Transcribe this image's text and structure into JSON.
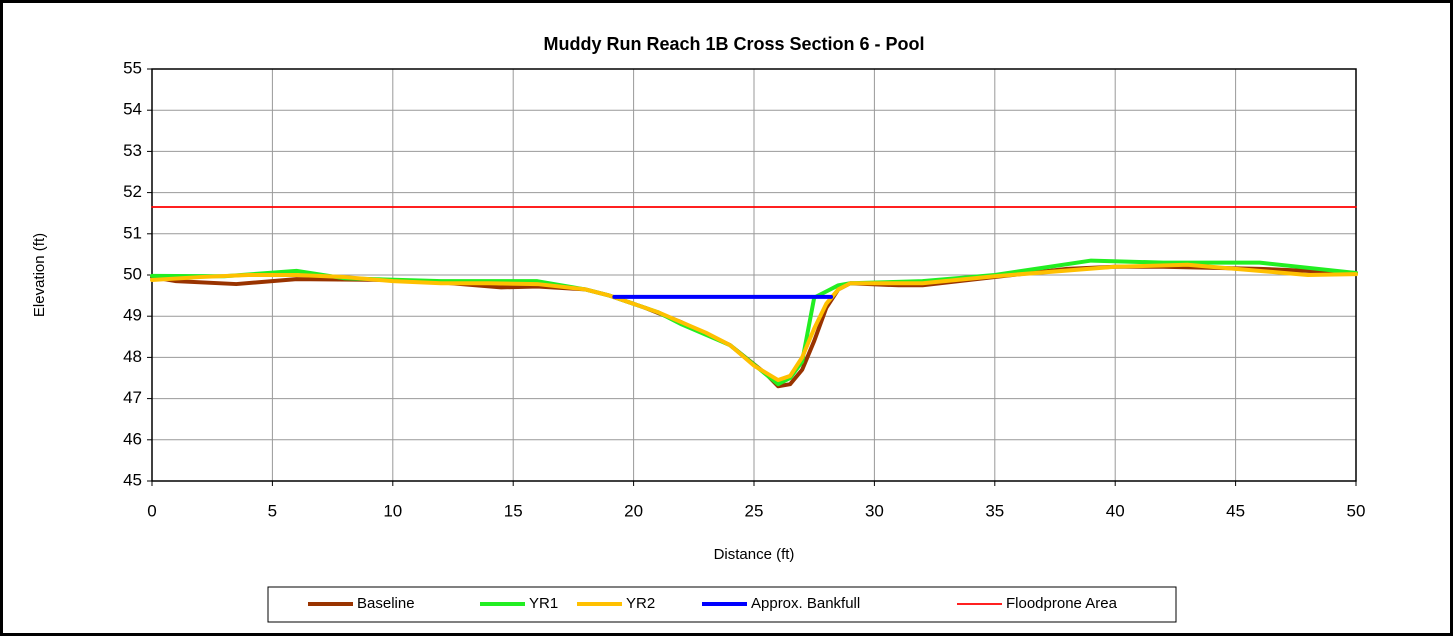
{
  "chart_data": {
    "type": "line",
    "title": "Muddy Run Reach 1B Cross Section 6 - Pool",
    "xlabel": "Distance (ft)",
    "ylabel": "Elevation (ft)",
    "xlim": [
      0,
      50
    ],
    "xticks": [
      0,
      5,
      10,
      15,
      20,
      25,
      30,
      35,
      40,
      45,
      50
    ],
    "ylim": [
      45,
      55
    ],
    "yticks": [
      45,
      46,
      47,
      48,
      49,
      50,
      51,
      52,
      53,
      54,
      55
    ],
    "grid": true,
    "legend": "bottom",
    "series": [
      {
        "name": "Baseline",
        "color": "#993300",
        "width": 4,
        "x": [
          0,
          1,
          3.5,
          6,
          10,
          12,
          14.5,
          16,
          18,
          19,
          20.5,
          22,
          24,
          25.5,
          26,
          26.5,
          27,
          27.5,
          28,
          28.5,
          29,
          31,
          32,
          35,
          38,
          40,
          42,
          46,
          48,
          50
        ],
        "values": [
          49.95,
          49.85,
          49.78,
          49.9,
          49.88,
          49.82,
          49.7,
          49.72,
          49.65,
          49.5,
          49.2,
          48.85,
          48.3,
          47.6,
          47.3,
          47.35,
          47.7,
          48.4,
          49.2,
          49.65,
          49.8,
          49.75,
          49.75,
          49.95,
          50.15,
          50.2,
          50.2,
          50.15,
          50.1,
          50.05
        ]
      },
      {
        "name": "YR1",
        "color": "#22ee22",
        "width": 4,
        "x": [
          0,
          3,
          6,
          8,
          12,
          16,
          18,
          19,
          21,
          22,
          24,
          26,
          26.5,
          27,
          27.5,
          28,
          28.5,
          29,
          32,
          35,
          39,
          42,
          46,
          50
        ],
        "values": [
          49.98,
          49.97,
          50.1,
          49.92,
          49.85,
          49.85,
          49.65,
          49.5,
          49.1,
          48.8,
          48.3,
          47.35,
          47.5,
          47.9,
          49.45,
          49.6,
          49.75,
          49.8,
          49.85,
          50.0,
          50.35,
          50.3,
          50.3,
          50.05
        ]
      },
      {
        "name": "YR2",
        "color": "#ffc000",
        "width": 4,
        "x": [
          0,
          2,
          4,
          6,
          8,
          10,
          12,
          14,
          16,
          18,
          19,
          21,
          23,
          24,
          25,
          26,
          26.5,
          27,
          27.5,
          28,
          28.5,
          29,
          32,
          35,
          40,
          43,
          45,
          48,
          50
        ],
        "values": [
          49.88,
          49.95,
          50.0,
          50.0,
          49.95,
          49.85,
          49.8,
          49.8,
          49.78,
          49.65,
          49.5,
          49.1,
          48.6,
          48.3,
          47.8,
          47.45,
          47.55,
          48.0,
          48.7,
          49.3,
          49.65,
          49.8,
          49.8,
          49.97,
          50.2,
          50.25,
          50.15,
          50.0,
          50.02
        ]
      },
      {
        "name": "Approx. Bankfull",
        "color": "#0000ff",
        "width": 4,
        "x": [
          19.2,
          28.2
        ],
        "values": [
          49.47,
          49.47
        ]
      },
      {
        "name": "Floodprone Area",
        "color": "#ff0000",
        "width": 1.8,
        "x": [
          0,
          50
        ],
        "values": [
          51.65,
          51.65
        ]
      }
    ]
  }
}
